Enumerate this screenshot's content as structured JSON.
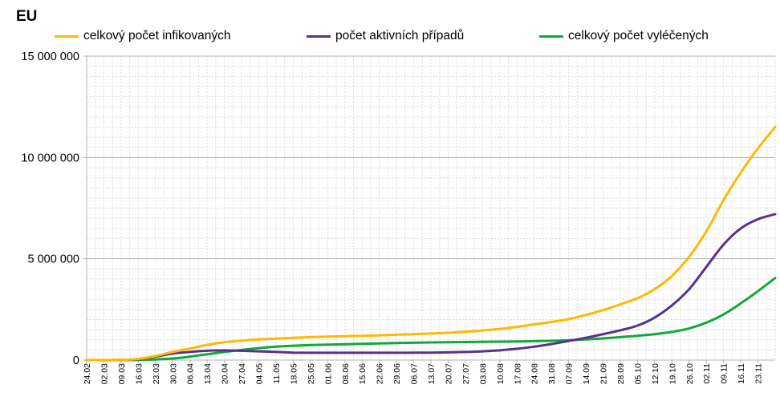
{
  "title": "EU",
  "colors": {
    "infected": "#FFB803",
    "active": "#58318F",
    "recovered": "#10A83B",
    "grid_major": "#B3B3B3",
    "grid_minor": "#DDDDDD"
  },
  "chart_data": {
    "type": "line",
    "title": "EU",
    "xlabel": "",
    "ylabel": "",
    "ylim": [
      0,
      15000000
    ],
    "yticks": [
      0,
      5000000,
      10000000,
      15000000
    ],
    "ytick_labels": [
      "0",
      "5 000 000",
      "10 000 000",
      "15 000 000"
    ],
    "grid": true,
    "legend_position": "top",
    "x_start": "24.02",
    "x_end": "29.11",
    "x_tick_labels": [
      "24.02",
      "02.03",
      "09.03",
      "16.03",
      "23.03",
      "30.03",
      "06.04",
      "13.04",
      "20.04",
      "27.04",
      "04.05",
      "11.05",
      "18.05",
      "25.05",
      "01.06",
      "08.06",
      "15.06",
      "22.06",
      "29.06",
      "06.07",
      "13.07",
      "20.07",
      "27.07",
      "03.08",
      "10.08",
      "17.08",
      "24.08",
      "31.08",
      "07.09",
      "14.09",
      "21.09",
      "28.09",
      "05.10",
      "12.10",
      "19.10",
      "26.10",
      "02.11",
      "09.11",
      "16.11",
      "23.11"
    ],
    "x": [
      "24.02",
      "02.03",
      "09.03",
      "16.03",
      "23.03",
      "30.03",
      "06.04",
      "13.04",
      "20.04",
      "27.04",
      "04.05",
      "11.05",
      "18.05",
      "25.05",
      "01.06",
      "08.06",
      "15.06",
      "22.06",
      "29.06",
      "06.07",
      "13.07",
      "20.07",
      "27.07",
      "03.08",
      "10.08",
      "17.08",
      "24.08",
      "31.08",
      "07.09",
      "14.09",
      "21.09",
      "28.09",
      "05.10",
      "12.10",
      "19.10",
      "26.10",
      "02.11",
      "09.11",
      "16.11",
      "23.11",
      "29.11"
    ],
    "series": [
      {
        "name": "celkový počet infikovaných",
        "color": "#FFB803",
        "values": [
          0,
          2000,
          10000,
          60000,
          200000,
          400000,
          570000,
          750000,
          880000,
          960000,
          1020000,
          1060000,
          1100000,
          1130000,
          1160000,
          1180000,
          1200000,
          1220000,
          1250000,
          1280000,
          1310000,
          1350000,
          1400000,
          1460000,
          1540000,
          1640000,
          1760000,
          1880000,
          2020000,
          2230000,
          2460000,
          2750000,
          3050000,
          3500000,
          4150000,
          5100000,
          6350000,
          7900000,
          9250000,
          10450000,
          11500000
        ]
      },
      {
        "name": "počet aktivních případů",
        "color": "#58318F",
        "values": [
          0,
          1500,
          8000,
          50000,
          170000,
          320000,
          400000,
          460000,
          480000,
          460000,
          430000,
          400000,
          370000,
          360000,
          360000,
          360000,
          360000,
          360000,
          360000,
          365000,
          370000,
          380000,
          400000,
          430000,
          480000,
          560000,
          660000,
          790000,
          940000,
          1100000,
          1280000,
          1470000,
          1700000,
          2100000,
          2700000,
          3500000,
          4600000,
          5700000,
          6500000,
          6950000,
          7200000
        ]
      },
      {
        "name": "celkový počet vyléčených",
        "color": "#10A83B",
        "values": [
          0,
          500,
          2000,
          10000,
          30000,
          80000,
          170000,
          290000,
          400000,
          500000,
          590000,
          660000,
          710000,
          740000,
          760000,
          780000,
          800000,
          820000,
          840000,
          855000,
          870000,
          880000,
          890000,
          900000,
          910000,
          920000,
          935000,
          950000,
          980000,
          1020000,
          1070000,
          1130000,
          1200000,
          1280000,
          1390000,
          1560000,
          1850000,
          2250000,
          2800000,
          3400000,
          4050000
        ]
      }
    ]
  }
}
